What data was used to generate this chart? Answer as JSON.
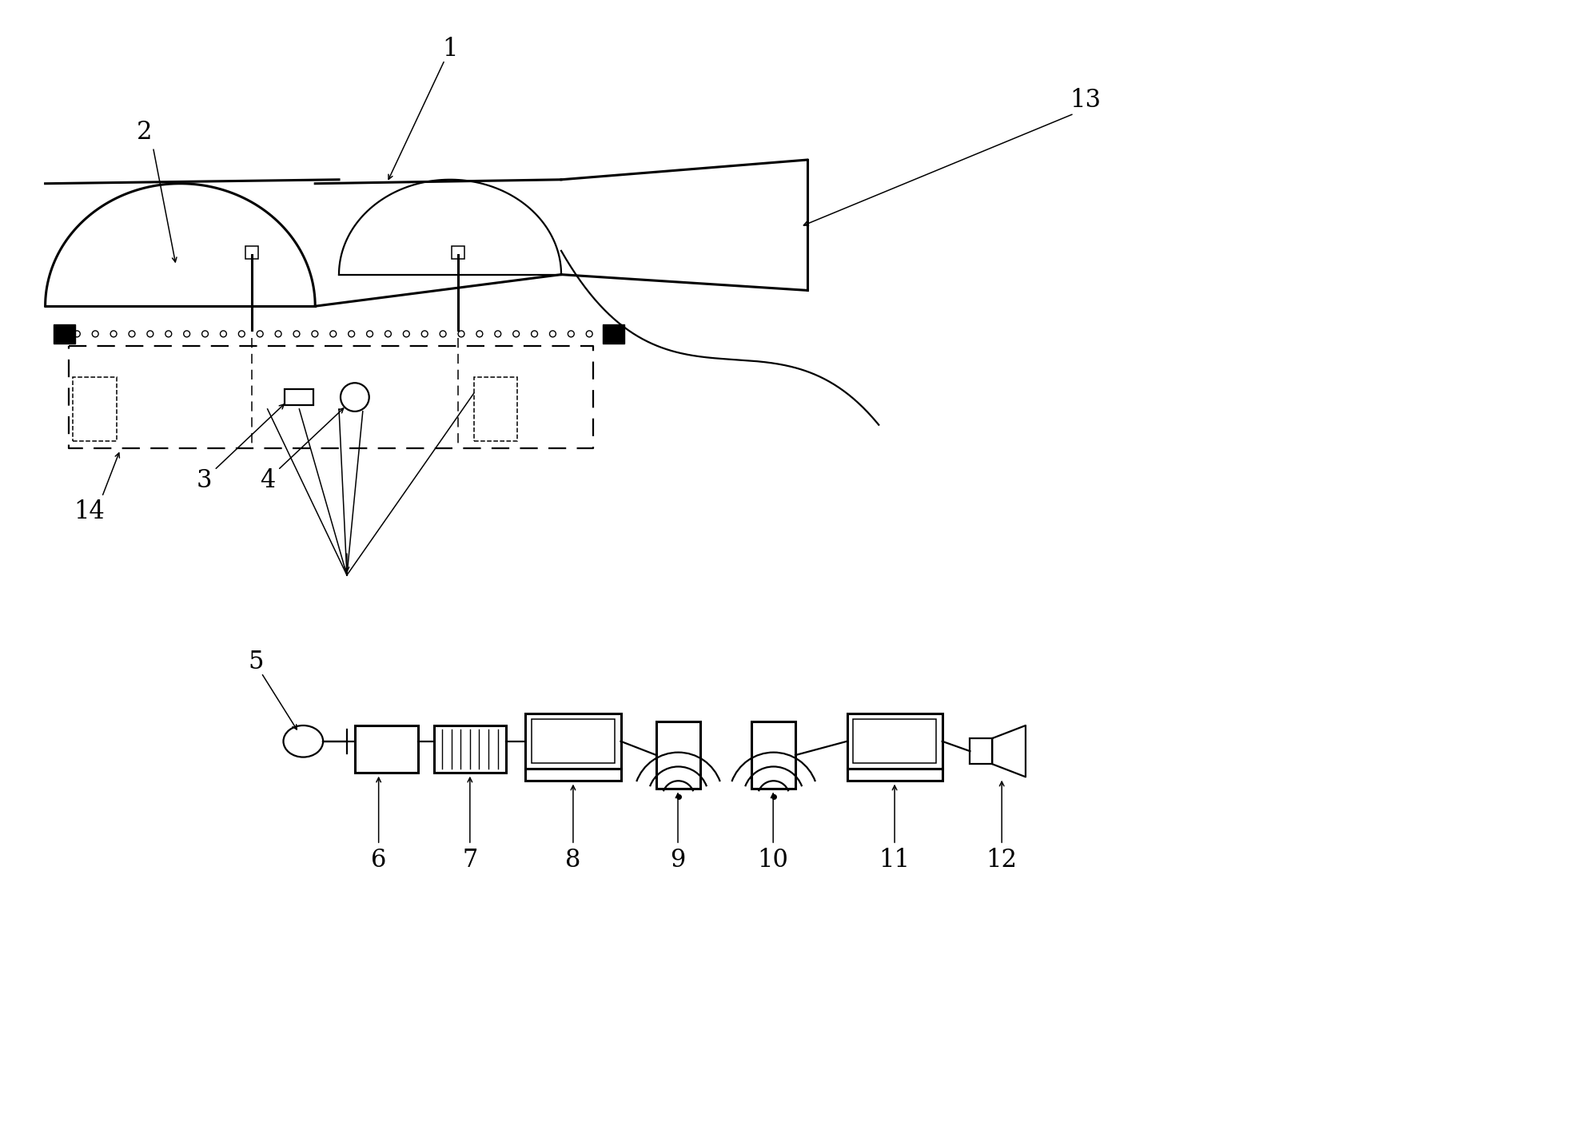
{
  "bg_color": "#ffffff",
  "line_color": "#000000",
  "lw_thick": 2.2,
  "lw_med": 1.6,
  "lw_thin": 1.1,
  "label_fontsize": 22
}
